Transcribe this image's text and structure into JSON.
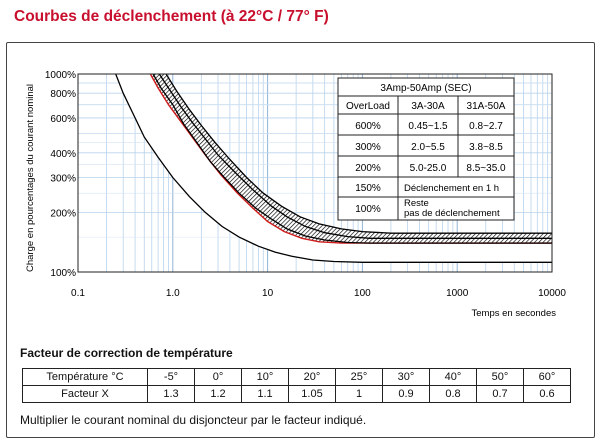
{
  "page_title": "Courbes de déclenchement (à 22°C / 77° F)",
  "chart_data": {
    "type": "line",
    "title": "",
    "xlabel": "Temps en secondes",
    "ylabel": "Charge en pourcentages du courant nominal",
    "x_scale": "log",
    "y_scale": "log",
    "xlim": [
      0.1,
      10000
    ],
    "ylim": [
      100,
      1000
    ],
    "x_ticks": [
      {
        "value": 0.1,
        "label": "0.1"
      },
      {
        "value": 1,
        "label": "1.0"
      },
      {
        "value": 10,
        "label": "10"
      },
      {
        "value": 100,
        "label": "100"
      },
      {
        "value": 1000,
        "label": "1000"
      },
      {
        "value": 10000,
        "label": "10000"
      }
    ],
    "y_ticks": [
      {
        "value": 100,
        "label": "100%"
      },
      {
        "value": 200,
        "label": "200%"
      },
      {
        "value": 300,
        "label": "300%"
      },
      {
        "value": 400,
        "label": "400%"
      },
      {
        "value": 600,
        "label": "600%"
      },
      {
        "value": 800,
        "label": "800%"
      },
      {
        "value": 1000,
        "label": "1000%"
      }
    ],
    "grid": true,
    "series": [
      {
        "name": "",
        "color": "#000000",
        "x": [
          0.25,
          0.3,
          0.4,
          0.5,
          0.7,
          1.0,
          1.5,
          2.2,
          3.3,
          5,
          8,
          12,
          18,
          30,
          50,
          100,
          300,
          1000,
          10000
        ],
        "y": [
          1000,
          800,
          600,
          480,
          380,
          300,
          240,
          200,
          170,
          150,
          135,
          126,
          120,
          115,
          113,
          112,
          112,
          112,
          112
        ]
      },
      {
        "name": "",
        "color": "#d11a1a",
        "x": [
          0.58,
          0.7,
          0.9,
          1.2,
          1.6,
          2.2,
          3.2,
          4.8,
          7,
          10,
          15,
          23,
          35,
          60,
          100,
          200,
          500,
          1000,
          10000
        ],
        "y": [
          1000,
          850,
          700,
          580,
          480,
          390,
          310,
          250,
          210,
          180,
          160,
          148,
          142,
          140,
          140,
          140,
          140,
          140,
          140
        ]
      },
      {
        "name": "",
        "color": "#000000",
        "x": [
          0.62,
          0.75,
          1.0,
          1.3,
          1.8,
          2.5,
          3.5,
          5,
          7.5,
          11,
          16,
          25,
          40,
          70,
          120,
          300,
          1000,
          10000
        ],
        "y": [
          1000,
          850,
          700,
          560,
          450,
          360,
          300,
          250,
          210,
          185,
          165,
          152,
          145,
          141,
          140,
          140,
          140,
          140
        ]
      },
      {
        "name": "",
        "color": "#000000",
        "x": [
          0.72,
          0.9,
          1.2,
          1.6,
          2.2,
          3.0,
          4.5,
          7,
          11,
          16,
          25,
          40,
          70,
          120,
          200,
          500,
          1000,
          10000
        ],
        "y": [
          1000,
          850,
          690,
          570,
          470,
          390,
          320,
          260,
          215,
          190,
          170,
          158,
          151,
          148,
          148,
          148,
          148,
          148
        ]
      },
      {
        "name": "",
        "color": "#000000",
        "x": [
          0.85,
          1.1,
          1.5,
          2.0,
          2.8,
          4.0,
          6,
          9,
          14,
          22,
          35,
          60,
          100,
          200,
          500,
          1000,
          10000
        ],
        "y": [
          1000,
          820,
          660,
          550,
          450,
          370,
          300,
          250,
          215,
          190,
          175,
          165,
          160,
          157,
          157,
          157,
          157
        ]
      }
    ]
  },
  "legend_table": {
    "header": "3Amp-50Amp  (SEC)",
    "columns": [
      "OverLoad",
      "3A-30A",
      "31A-50A"
    ],
    "rows": [
      {
        "overload": "600%",
        "a": "0.45~1.5",
        "b": "0.8~2.7"
      },
      {
        "overload": "300%",
        "a": "2.0~5.5",
        "b": "3.8~8.5"
      },
      {
        "overload": "200%",
        "a": "5.0-25.0",
        "b": "8.5~35.0"
      },
      {
        "overload": "150%",
        "merged": "Déclenchement en 1 h"
      },
      {
        "overload": "100%",
        "merged_line1": "Reste",
        "merged_line2": "pas de déclenchement"
      }
    ]
  },
  "correction": {
    "title": "Facteur de correction de température",
    "temp_label": "Température °C",
    "factor_label": "Facteur X",
    "temps": [
      "-5°",
      "0°",
      "10°",
      "20°",
      "25°",
      "30°",
      "40°",
      "50°",
      "60°"
    ],
    "factors": [
      "1.3",
      "1.2",
      "1.1",
      "1.05",
      "1",
      "0.9",
      "0.8",
      "0.7",
      "0.6"
    ]
  },
  "note": "Multiplier le courant nominal du disjoncteur par le facteur indiqué."
}
